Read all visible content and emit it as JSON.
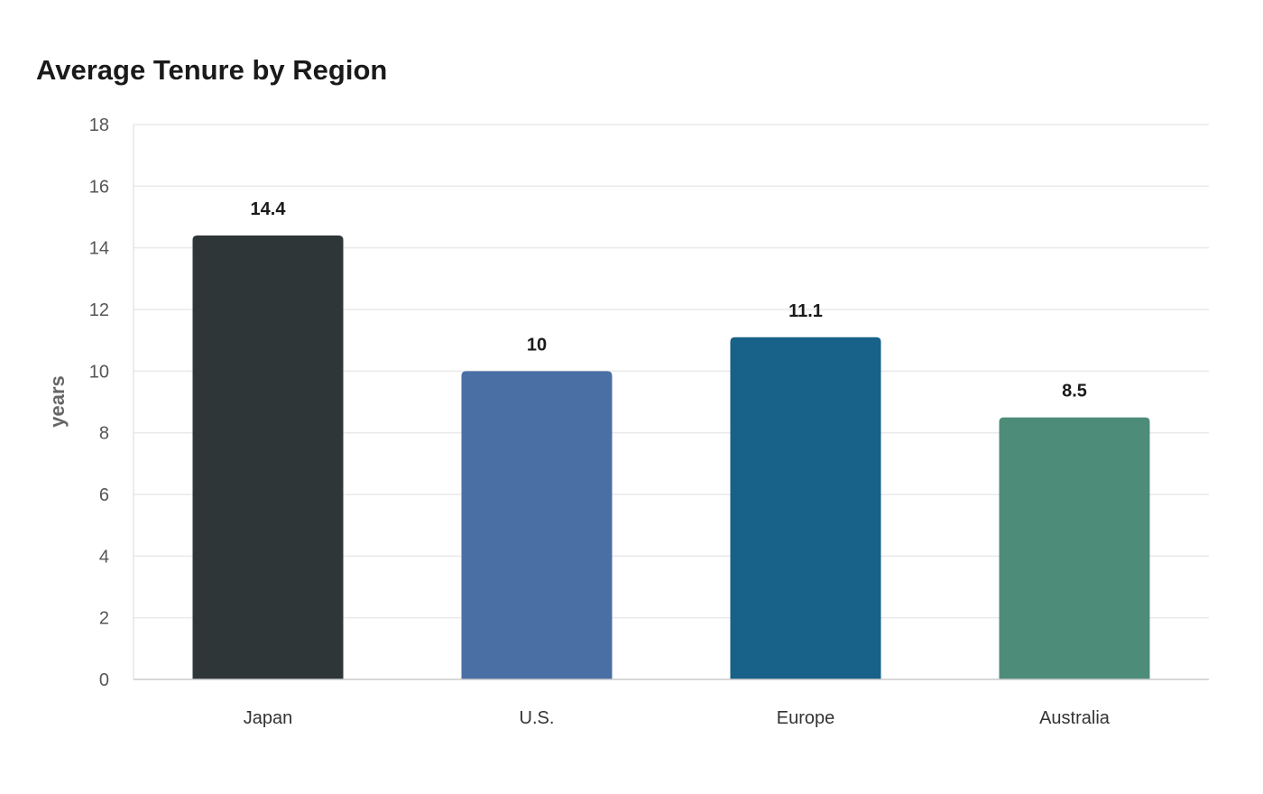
{
  "chart_data": {
    "type": "bar",
    "title": "Average Tenure by Region",
    "xlabel": "",
    "ylabel": "years",
    "categories": [
      "Japan",
      "U.S.",
      "Europe",
      "Australia"
    ],
    "values": [
      14.4,
      10,
      11.1,
      8.5
    ],
    "value_labels": [
      "14.4",
      "10",
      "11.1",
      "8.5"
    ],
    "colors": [
      "#2e3638",
      "#4a6fa5",
      "#186188",
      "#4e8c7a"
    ],
    "ylim": [
      0,
      18
    ],
    "yticks": [
      0,
      2,
      4,
      6,
      8,
      10,
      12,
      14,
      16,
      18
    ],
    "grid": true,
    "legend": "none"
  }
}
